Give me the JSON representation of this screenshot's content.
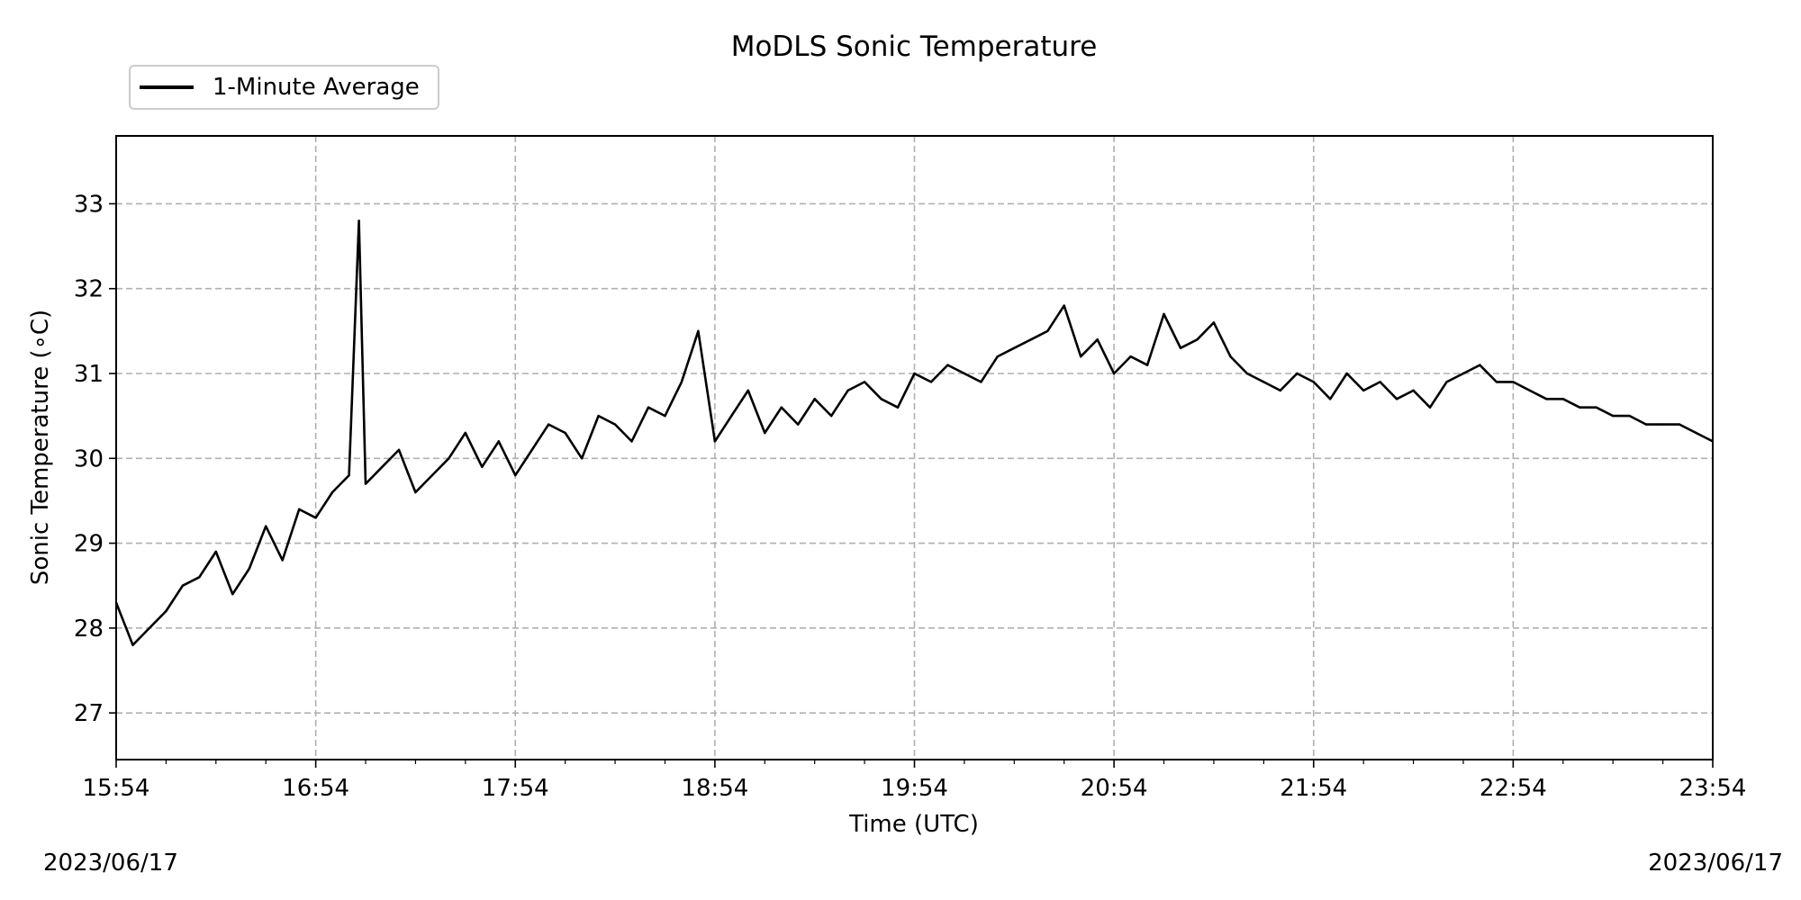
{
  "chart_data": {
    "type": "line",
    "title": "MoDLS Sonic Temperature",
    "xlabel": "Time (UTC)",
    "ylabel": "Sonic Temperature (∘C)",
    "ylim": [
      26.45,
      33.8
    ],
    "yticks": [
      27,
      28,
      29,
      30,
      31,
      32,
      33
    ],
    "xlim_minutes": [
      0,
      480
    ],
    "xticks": [
      {
        "t": 0,
        "label": "15:54"
      },
      {
        "t": 60,
        "label": "16:54"
      },
      {
        "t": 120,
        "label": "17:54"
      },
      {
        "t": 180,
        "label": "18:54"
      },
      {
        "t": 240,
        "label": "19:54"
      },
      {
        "t": 300,
        "label": "20:54"
      },
      {
        "t": 360,
        "label": "21:54"
      },
      {
        "t": 420,
        "label": "22:54"
      },
      {
        "t": 480,
        "label": "23:54"
      }
    ],
    "date_start": "2023/06/17",
    "date_end": "2023/06/17",
    "grid": true,
    "legend_position": "top-left, above plot",
    "series": [
      {
        "name": "1-Minute Average",
        "color": "#000000",
        "x_minutes": [
          0,
          5,
          10,
          15,
          20,
          25,
          30,
          35,
          40,
          45,
          50,
          55,
          60,
          65,
          70,
          73,
          75,
          80,
          85,
          90,
          95,
          100,
          105,
          110,
          115,
          120,
          125,
          130,
          135,
          140,
          145,
          150,
          155,
          160,
          165,
          170,
          175,
          180,
          185,
          190,
          195,
          200,
          205,
          210,
          215,
          220,
          225,
          230,
          235,
          240,
          245,
          250,
          255,
          260,
          265,
          270,
          275,
          280,
          285,
          290,
          295,
          300,
          305,
          310,
          315,
          320,
          325,
          330,
          335,
          340,
          345,
          350,
          355,
          360,
          365,
          370,
          375,
          380,
          385,
          390,
          395,
          400,
          405,
          410,
          415,
          420,
          425,
          430,
          435,
          440,
          445,
          450,
          455,
          460,
          465,
          470,
          475,
          480
        ],
        "y": [
          28.3,
          27.8,
          28.0,
          28.2,
          28.5,
          28.6,
          28.9,
          28.4,
          28.7,
          29.2,
          28.8,
          29.4,
          29.3,
          29.6,
          29.8,
          32.8,
          29.7,
          29.9,
          30.1,
          29.6,
          29.8,
          30.0,
          30.3,
          29.9,
          30.2,
          29.8,
          30.1,
          30.4,
          30.3,
          30.0,
          30.5,
          30.4,
          30.2,
          30.6,
          30.5,
          30.9,
          31.5,
          30.2,
          30.5,
          30.8,
          30.3,
          30.6,
          30.4,
          30.7,
          30.5,
          30.8,
          30.9,
          30.7,
          30.6,
          31.0,
          30.9,
          31.1,
          31.0,
          30.9,
          31.2,
          31.3,
          31.4,
          31.5,
          31.8,
          31.2,
          31.4,
          31.0,
          31.2,
          31.1,
          31.7,
          31.3,
          31.4,
          31.6,
          31.2,
          31.0,
          30.9,
          30.8,
          31.0,
          30.9,
          30.7,
          31.0,
          30.8,
          30.9,
          30.7,
          30.8,
          30.6,
          30.9,
          31.0,
          31.1,
          30.9,
          30.9,
          30.8,
          30.7,
          30.7,
          30.6,
          30.6,
          30.5,
          30.5,
          30.4,
          30.4,
          30.4,
          30.3,
          30.2
        ]
      }
    ]
  }
}
